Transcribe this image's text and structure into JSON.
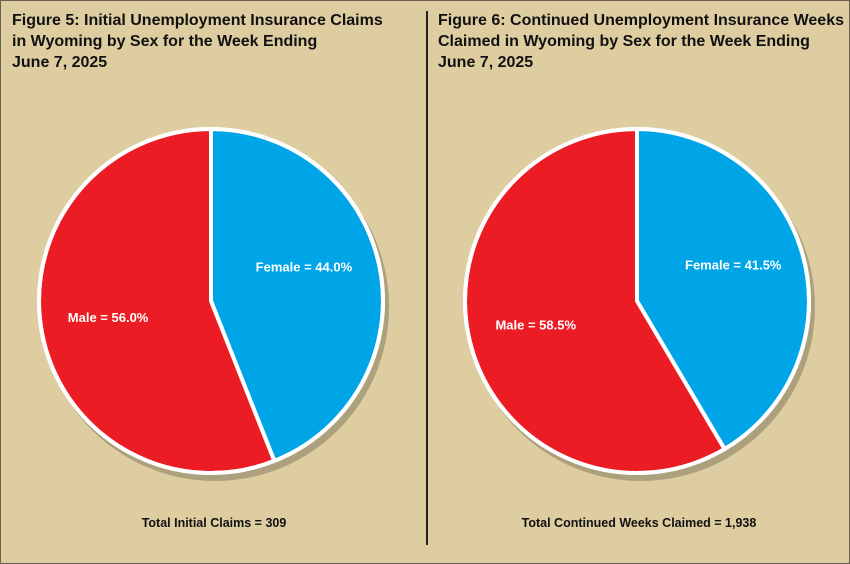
{
  "colors": {
    "background": "#ddcda0",
    "male": "#ec1c24",
    "female": "#00a5e8",
    "border": "#ffffff"
  },
  "chart_data": [
    {
      "type": "pie",
      "title_lines": [
        "Figure 5: Initial Unemployment Insurance Claims",
        "in Wyoming by Sex for the Week Ending",
        "June 7, 2025"
      ],
      "slices": [
        {
          "label": "Female = 44.0%",
          "category": "Female",
          "value": 44.0,
          "color": "#00a5e8"
        },
        {
          "label": "Male = 56.0%",
          "category": "Male",
          "value": 56.0,
          "color": "#ec1c24"
        }
      ],
      "total_text": "Total Initial Claims = 309",
      "total": 309
    },
    {
      "type": "pie",
      "title_lines": [
        "Figure 6: Continued Unemployment Insurance Weeks",
        "Claimed in Wyoming by Sex for the Week Ending",
        "June 7, 2025"
      ],
      "slices": [
        {
          "label": "Female = 41.5%",
          "category": "Female",
          "value": 41.5,
          "color": "#00a5e8"
        },
        {
          "label": "Male = 58.5%",
          "category": "Male",
          "value": 58.5,
          "color": "#ec1c24"
        }
      ],
      "total_text": "Total Continued Weeks Claimed = 1,938",
      "total": 1938
    }
  ]
}
